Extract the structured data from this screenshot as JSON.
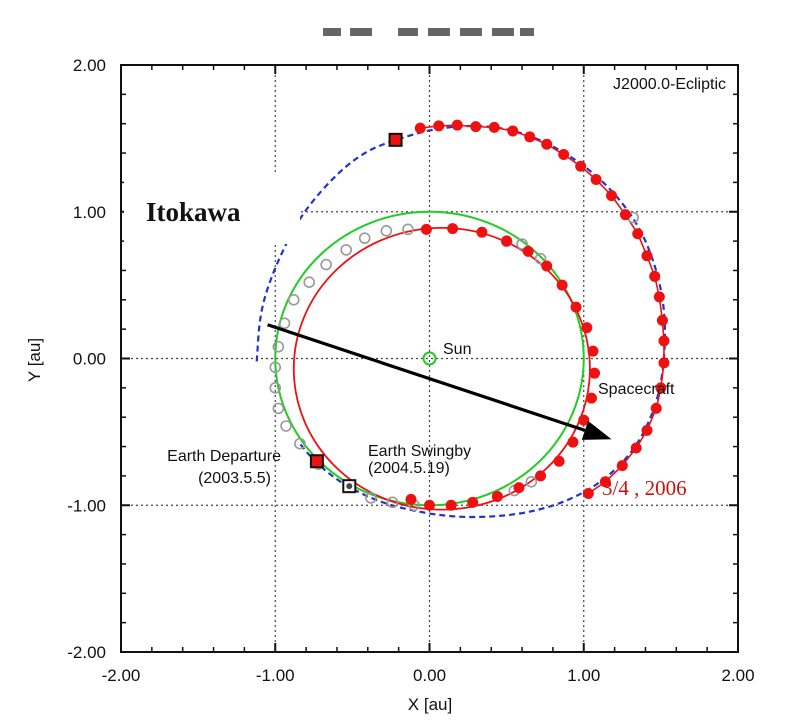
{
  "chart_data": {
    "type": "scatter",
    "title": "",
    "frame_label": "J2000.0-Ecliptic",
    "xlabel": "X [au]",
    "ylabel": "Y [au]",
    "xlim": [
      -2.0,
      2.0
    ],
    "ylim": [
      -2.0,
      2.0
    ],
    "xticks": [
      "-2.00",
      "-1.00",
      "0.00",
      "1.00",
      "2.00"
    ],
    "yticks": [
      "2.00",
      "1.00",
      "0.00",
      "-1.00",
      "-2.00"
    ],
    "grid": true,
    "colors": {
      "spacecraft": "#ee1111",
      "earth_orbit": "#22cc22",
      "itokawa_orbit": "#2233cc",
      "earth_positions": "#999999",
      "arrow": "#000000",
      "date_text": "#cc1111"
    },
    "sun": {
      "x": 0.0,
      "y": 0.0,
      "label": "Sun"
    },
    "earth_orbit": {
      "cx": 0.0,
      "cy": 0.0,
      "r": 1.0
    },
    "spacecraft_inner_orbit": {
      "cx": 0.08,
      "cy": -0.07,
      "r": 0.96
    },
    "spacecraft_outer_points": [
      [
        -0.06,
        1.57
      ],
      [
        0.06,
        1.585
      ],
      [
        0.18,
        1.59
      ],
      [
        0.3,
        1.58
      ],
      [
        0.42,
        1.575
      ],
      [
        0.54,
        1.55
      ],
      [
        0.65,
        1.51
      ],
      [
        0.76,
        1.46
      ],
      [
        0.87,
        1.39
      ],
      [
        0.98,
        1.31
      ],
      [
        1.08,
        1.22
      ],
      [
        1.18,
        1.11
      ],
      [
        1.27,
        0.98
      ],
      [
        1.35,
        0.85
      ],
      [
        1.41,
        0.7
      ],
      [
        1.46,
        0.56
      ],
      [
        1.49,
        0.42
      ],
      [
        1.51,
        0.26
      ],
      [
        1.52,
        0.12
      ],
      [
        1.52,
        -0.03
      ],
      [
        1.5,
        -0.2
      ],
      [
        1.47,
        -0.34
      ],
      [
        1.41,
        -0.49
      ],
      [
        1.34,
        -0.61
      ],
      [
        1.25,
        -0.73
      ],
      [
        1.14,
        -0.84
      ],
      [
        1.03,
        -0.92
      ]
    ],
    "spacecraft_inner_points": [
      [
        -0.02,
        0.88
      ],
      [
        0.15,
        0.885
      ],
      [
        0.34,
        0.86
      ],
      [
        0.5,
        0.8
      ],
      [
        0.64,
        0.73
      ],
      [
        0.76,
        0.63
      ],
      [
        0.86,
        0.5
      ],
      [
        0.95,
        0.35
      ],
      [
        1.02,
        0.21
      ],
      [
        1.06,
        0.05
      ],
      [
        1.07,
        -0.1
      ],
      [
        1.05,
        -0.27
      ],
      [
        1.0,
        -0.42
      ],
      [
        0.93,
        -0.57
      ],
      [
        0.84,
        -0.7
      ],
      [
        0.72,
        -0.8
      ],
      [
        0.58,
        -0.88
      ],
      [
        0.44,
        -0.94
      ],
      [
        0.28,
        -0.98
      ],
      [
        0.14,
        -1.0
      ],
      [
        0.0,
        -1.0
      ],
      [
        -0.12,
        -0.96
      ]
    ],
    "earth_position_points": [
      [
        -0.72,
        -0.72
      ],
      [
        -0.84,
        -0.58
      ],
      [
        -0.93,
        -0.46
      ],
      [
        -0.98,
        -0.34
      ],
      [
        -1.0,
        -0.2
      ],
      [
        -1.0,
        -0.06
      ],
      [
        -0.98,
        0.08
      ],
      [
        -0.94,
        0.24
      ],
      [
        -0.88,
        0.4
      ],
      [
        -0.78,
        0.52
      ],
      [
        -0.67,
        0.64
      ],
      [
        -0.54,
        0.74
      ],
      [
        -0.42,
        0.82
      ],
      [
        -0.28,
        0.87
      ],
      [
        -0.14,
        0.88
      ],
      [
        0.6,
        0.78
      ],
      [
        0.72,
        0.68
      ],
      [
        0.5,
        0.8
      ],
      [
        1.32,
        0.96
      ],
      [
        -0.38,
        -0.95
      ],
      [
        -0.24,
        -0.98
      ],
      [
        -0.1,
        -1.0
      ],
      [
        0.55,
        -0.9
      ],
      [
        0.66,
        -0.84
      ]
    ],
    "itokawa_orbit_samples": [
      [
        -1.12,
        -0.02
      ],
      [
        -1.1,
        0.3
      ],
      [
        -1.03,
        0.55
      ],
      [
        -0.9,
        0.85
      ],
      [
        -0.78,
        1.05
      ],
      [
        -0.58,
        1.28
      ],
      [
        -0.4,
        1.42
      ],
      [
        -0.22,
        1.49
      ],
      [
        0.0,
        1.56
      ],
      [
        0.25,
        1.59
      ],
      [
        0.5,
        1.57
      ],
      [
        0.75,
        1.48
      ],
      [
        1.0,
        1.32
      ],
      [
        1.2,
        1.13
      ],
      [
        1.36,
        0.9
      ],
      [
        1.46,
        0.65
      ],
      [
        1.52,
        0.38
      ],
      [
        1.53,
        0.1
      ],
      [
        1.5,
        -0.2
      ],
      [
        1.42,
        -0.45
      ],
      [
        1.3,
        -0.66
      ],
      [
        1.12,
        -0.84
      ],
      [
        0.9,
        -0.97
      ],
      [
        0.65,
        -1.05
      ],
      [
        0.4,
        -1.08
      ],
      [
        0.15,
        -1.08
      ],
      [
        -0.1,
        -1.04
      ],
      [
        -0.32,
        -0.98
      ],
      [
        -0.52,
        -0.88
      ],
      [
        -0.66,
        -0.78
      ],
      [
        -0.78,
        -0.66
      ],
      [
        -0.84,
        -0.58
      ]
    ],
    "square_markers": [
      {
        "x": -0.22,
        "y": 1.49,
        "kind": "itokawa-arrival"
      },
      {
        "x": -0.73,
        "y": -0.7,
        "kind": "earth-departure"
      },
      {
        "x": -0.52,
        "y": -0.87,
        "kind": "earth-swingby"
      }
    ],
    "arrow": {
      "from": [
        -1.05,
        0.23
      ],
      "to": [
        1.18,
        -0.55
      ]
    },
    "annotations": {
      "itokawa": "Itokawa",
      "sun": "Sun",
      "spacecraft": "Spacecraft",
      "earth_departure_line1": "Earth Departure",
      "earth_departure_line2": "(2003.5.5)",
      "earth_swingby_line1": "Earth Swingby",
      "earth_swingby_line2": "(2004.5.19)",
      "date": "3/4 , 2006"
    }
  }
}
